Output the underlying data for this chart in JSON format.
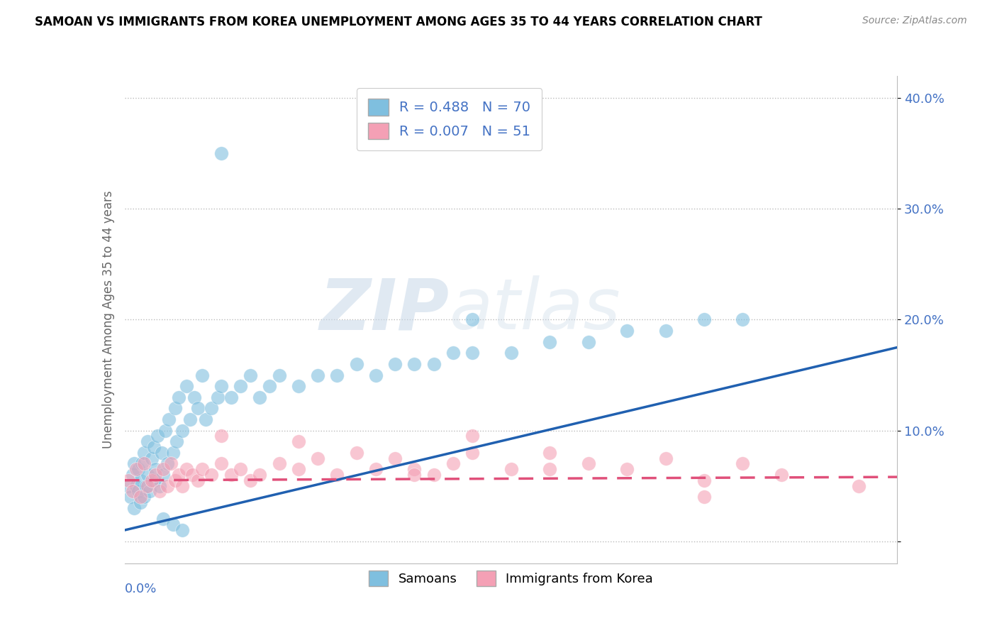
{
  "title": "SAMOAN VS IMMIGRANTS FROM KOREA UNEMPLOYMENT AMONG AGES 35 TO 44 YEARS CORRELATION CHART",
  "source": "Source: ZipAtlas.com",
  "ylabel": "Unemployment Among Ages 35 to 44 years",
  "xlim": [
    0,
    0.4
  ],
  "ylim": [
    -0.02,
    0.42
  ],
  "samoans_R": 0.488,
  "samoans_N": 70,
  "korea_R": 0.007,
  "korea_N": 51,
  "blue_color": "#7fbfdf",
  "pink_color": "#f4a0b5",
  "blue_line_color": "#2060b0",
  "pink_line_color": "#e0507a",
  "legend_items": [
    "Samoans",
    "Immigrants from Korea"
  ],
  "samoans_x": [
    0.002,
    0.003,
    0.004,
    0.005,
    0.005,
    0.006,
    0.007,
    0.007,
    0.008,
    0.008,
    0.009,
    0.01,
    0.01,
    0.011,
    0.012,
    0.012,
    0.013,
    0.014,
    0.015,
    0.015,
    0.016,
    0.017,
    0.018,
    0.019,
    0.02,
    0.021,
    0.022,
    0.023,
    0.025,
    0.026,
    0.027,
    0.028,
    0.03,
    0.032,
    0.034,
    0.036,
    0.038,
    0.04,
    0.042,
    0.045,
    0.048,
    0.05,
    0.055,
    0.06,
    0.065,
    0.07,
    0.075,
    0.08,
    0.09,
    0.1,
    0.11,
    0.12,
    0.13,
    0.14,
    0.15,
    0.16,
    0.17,
    0.18,
    0.2,
    0.22,
    0.24,
    0.26,
    0.28,
    0.3,
    0.32,
    0.05,
    0.02,
    0.025,
    0.03,
    0.18
  ],
  "samoans_y": [
    0.05,
    0.04,
    0.06,
    0.03,
    0.07,
    0.05,
    0.045,
    0.065,
    0.035,
    0.055,
    0.07,
    0.04,
    0.08,
    0.05,
    0.06,
    0.09,
    0.045,
    0.075,
    0.055,
    0.085,
    0.065,
    0.095,
    0.05,
    0.08,
    0.06,
    0.1,
    0.07,
    0.11,
    0.08,
    0.12,
    0.09,
    0.13,
    0.1,
    0.14,
    0.11,
    0.13,
    0.12,
    0.15,
    0.11,
    0.12,
    0.13,
    0.14,
    0.13,
    0.14,
    0.15,
    0.13,
    0.14,
    0.15,
    0.14,
    0.15,
    0.15,
    0.16,
    0.15,
    0.16,
    0.16,
    0.16,
    0.17,
    0.17,
    0.17,
    0.18,
    0.18,
    0.19,
    0.19,
    0.2,
    0.2,
    0.35,
    0.02,
    0.015,
    0.01,
    0.2
  ],
  "korea_x": [
    0.002,
    0.004,
    0.006,
    0.008,
    0.01,
    0.012,
    0.014,
    0.016,
    0.018,
    0.02,
    0.022,
    0.024,
    0.026,
    0.028,
    0.03,
    0.032,
    0.035,
    0.038,
    0.04,
    0.045,
    0.05,
    0.055,
    0.06,
    0.065,
    0.07,
    0.08,
    0.09,
    0.1,
    0.11,
    0.12,
    0.13,
    0.14,
    0.15,
    0.16,
    0.17,
    0.18,
    0.2,
    0.22,
    0.24,
    0.26,
    0.28,
    0.3,
    0.32,
    0.18,
    0.09,
    0.05,
    0.15,
    0.22,
    0.3,
    0.38,
    0.34
  ],
  "korea_y": [
    0.055,
    0.045,
    0.065,
    0.04,
    0.07,
    0.05,
    0.055,
    0.06,
    0.045,
    0.065,
    0.05,
    0.07,
    0.055,
    0.06,
    0.05,
    0.065,
    0.06,
    0.055,
    0.065,
    0.06,
    0.07,
    0.06,
    0.065,
    0.055,
    0.06,
    0.07,
    0.065,
    0.075,
    0.06,
    0.08,
    0.065,
    0.075,
    0.065,
    0.06,
    0.07,
    0.08,
    0.065,
    0.08,
    0.07,
    0.065,
    0.075,
    0.055,
    0.07,
    0.095,
    0.09,
    0.095,
    0.06,
    0.065,
    0.04,
    0.05,
    0.06
  ],
  "blue_line_y0": 0.01,
  "blue_line_y1": 0.175,
  "pink_line_y0": 0.055,
  "pink_line_y1": 0.058
}
